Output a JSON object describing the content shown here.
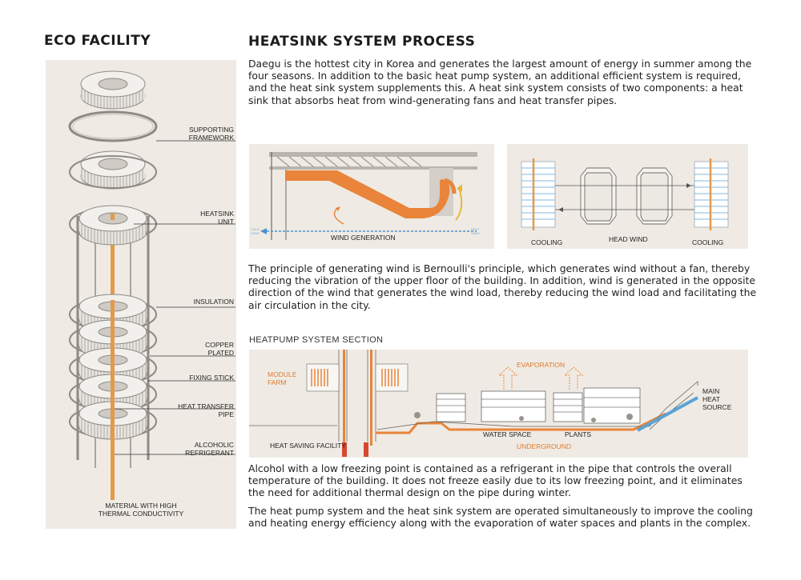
{
  "left": {
    "title": "ECO FACILITY",
    "labels": {
      "supporting": [
        "SUPPORTING",
        "FRAMEWORK"
      ],
      "heatsink": [
        "HEATSINK",
        "UNIT"
      ],
      "insulation": [
        "INSULATION"
      ],
      "copper": [
        "COPPER",
        "PLATED"
      ],
      "fixing": [
        "FIXING STICK"
      ],
      "pipe": [
        "HEAT TRANSFER",
        "PIPE"
      ],
      "alcoholic": [
        "ALCOHOLIC",
        "REFRIGERANT"
      ]
    },
    "material": [
      "MATERIAL WITH HIGH",
      "THERMAL CONDUCTIVITY"
    ]
  },
  "right": {
    "title": "HEATSINK SYSTEM PROCESS",
    "para1": "Daegu is the hottest city in Korea and generates the largest amount of energy in summer among the four seasons. In addition to the basic heat pump system, an additional efficient system is required, and the heat sink system supplements this.  A heat sink system consists of two components: a heat sink that absorbs heat from wind-generating fans and heat transfer pipes.",
    "wind_generation": "WIND GENERATION",
    "wind_left_small": "COLD\nWIND",
    "wind_right_small": "HEAT\nWIND",
    "cooling_left": "COOLING",
    "head_wind": "HEAD WIND",
    "cooling_right": "COOLING",
    "para2": "The principle of generating wind is Bernoulli's principle, which generates wind without a fan, thereby reducing the vibration of the upper floor of the building. In addition, wind is generated in the opposite direction of the wind that generates the wind load, thereby reducing the wind load and facilitating the air circulation in the city.",
    "section_title": "HEATPUMP SYSTEM SECTION",
    "module_farm": [
      "MODULE",
      "FARM"
    ],
    "evaporation": "EVAPORATION",
    "main_heat_source": [
      "MAIN",
      "HEAT",
      "SOURCE"
    ],
    "heat_saving": "HEAT SAVING FACILITY",
    "water_space": "WATER SPACE",
    "plants": "PLANTS",
    "underground": "UNDERGROUND",
    "para3": "Alcohol with a low freezing point is contained as a refrigerant in the pipe that controls the overall temperature of the building. It does not freeze easily due to its low freezing point, and it eliminates the need for additional thermal design on the pipe during winter.",
    "para4": "The heat pump system and the heat sink system are operated simultaneously to improve the cooling and heating energy efficiency along with the evaporation of water spaces and plants in the complex."
  },
  "colors": {
    "panel_bg": "#efebe4",
    "accent_orange": "#e07a2e",
    "accent_blue": "#5aa3d6"
  }
}
